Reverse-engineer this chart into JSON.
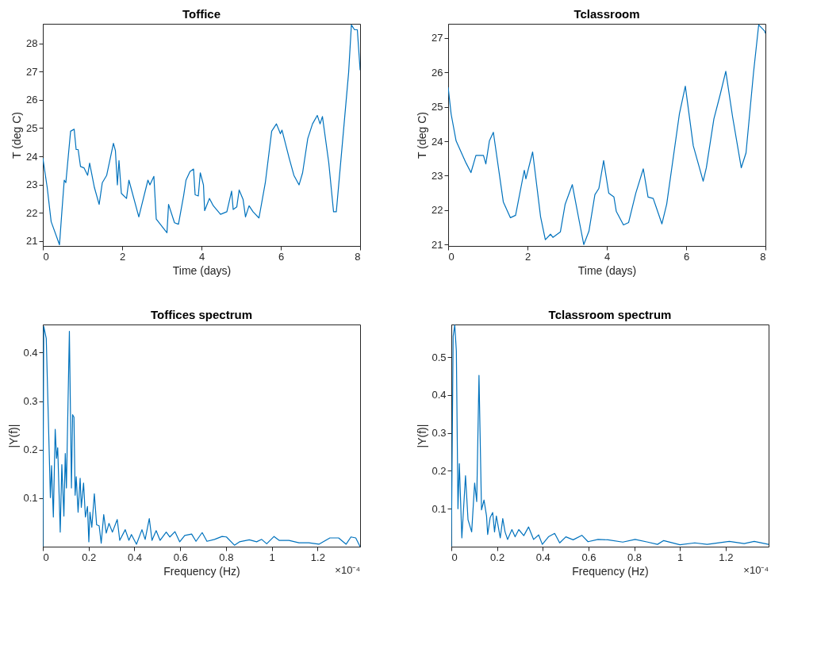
{
  "chart_data": [
    {
      "type": "line",
      "title": "Toffice",
      "xlabel": "Time (days)",
      "ylabel": "T (deg C)",
      "xlim": [
        0,
        8
      ],
      "ylim": [
        20.83,
        28.69
      ],
      "xticks": [
        0,
        2,
        4,
        6,
        8
      ],
      "yticks": [
        21,
        22,
        23,
        24,
        25,
        26,
        27,
        28
      ],
      "grid": false,
      "color": "#0072bd",
      "x": [
        0,
        0.11,
        0.21,
        0.42,
        0.48,
        0.54,
        0.58,
        0.7,
        0.79,
        0.84,
        0.89,
        0.95,
        1.04,
        1.13,
        1.18,
        1.3,
        1.42,
        1.5,
        1.61,
        1.78,
        1.83,
        1.88,
        1.92,
        1.98,
        2.11,
        2.17,
        2.42,
        2.65,
        2.7,
        2.8,
        2.86,
        3.13,
        3.17,
        3.32,
        3.42,
        3.55,
        3.61,
        3.71,
        3.8,
        3.84,
        3.92,
        3.97,
        4.05,
        4.08,
        4.2,
        4.3,
        4.48,
        4.64,
        4.76,
        4.8,
        4.89,
        4.95,
        5.05,
        5.11,
        5.2,
        5.3,
        5.45,
        5.61,
        5.77,
        5.89,
        5.99,
        6.03,
        6.21,
        6.33,
        6.46,
        6.55,
        6.68,
        6.8,
        6.92,
        6.99,
        7.05,
        7.21,
        7.33,
        7.4,
        7.58,
        7.71,
        7.78,
        7.86,
        7.93,
        8.0
      ],
      "values": [
        23.94,
        22.9,
        21.69,
        20.87,
        22.04,
        23.16,
        23.07,
        24.89,
        24.96,
        24.24,
        24.24,
        23.64,
        23.59,
        23.33,
        23.76,
        22.9,
        22.3,
        23.07,
        23.33,
        24.46,
        24.2,
        22.99,
        23.85,
        22.69,
        22.51,
        23.16,
        21.86,
        23.16,
        22.99,
        23.29,
        21.78,
        21.3,
        22.3,
        21.65,
        21.6,
        22.61,
        23.16,
        23.46,
        23.55,
        22.64,
        22.6,
        23.42,
        22.99,
        22.08,
        22.51,
        22.25,
        21.95,
        22.04,
        22.77,
        22.12,
        22.21,
        22.81,
        22.47,
        21.86,
        22.25,
        22.04,
        21.82,
        23.07,
        24.89,
        25.15,
        24.8,
        24.93,
        23.94,
        23.33,
        22.99,
        23.42,
        24.63,
        25.15,
        25.45,
        25.15,
        25.41,
        23.77,
        22.04,
        22.04,
        24.89,
        26.96,
        28.65,
        28.48,
        28.48,
        27.05
      ]
    },
    {
      "type": "line",
      "title": "Tclassroom",
      "xlabel": "Time (days)",
      "ylabel": "T (deg C)",
      "xlim": [
        0,
        8
      ],
      "ylim": [
        20.96,
        27.41
      ],
      "xticks": [
        0,
        2,
        4,
        6,
        8
      ],
      "yticks": [
        21,
        22,
        23,
        24,
        25,
        26,
        27
      ],
      "grid": false,
      "color": "#0072bd",
      "x": [
        0,
        0.075,
        0.2,
        0.45,
        0.575,
        0.7,
        0.89,
        0.95,
        1.04,
        1.14,
        1.39,
        1.57,
        1.7,
        1.92,
        1.96,
        2.13,
        2.33,
        2.45,
        2.58,
        2.64,
        2.83,
        2.95,
        3.13,
        3.33,
        3.42,
        3.55,
        3.7,
        3.8,
        3.92,
        4.05,
        4.18,
        4.24,
        4.42,
        4.55,
        4.73,
        4.92,
        5.04,
        5.17,
        5.39,
        5.51,
        5.83,
        5.98,
        6.18,
        6.43,
        6.51,
        6.7,
        6.86,
        7.0,
        7.17,
        7.39,
        7.51,
        7.7,
        7.83,
        7.98,
        8.0
      ],
      "values": [
        25.57,
        24.79,
        24.01,
        23.37,
        23.09,
        23.59,
        23.59,
        23.34,
        24.01,
        24.26,
        22.24,
        21.78,
        21.85,
        23.16,
        22.91,
        23.69,
        21.81,
        21.14,
        21.3,
        21.21,
        21.37,
        22.17,
        22.74,
        21.53,
        21.0,
        21.39,
        22.45,
        22.63,
        23.44,
        22.49,
        22.38,
        21.96,
        21.57,
        21.64,
        22.49,
        23.2,
        22.38,
        22.34,
        21.6,
        22.17,
        24.79,
        25.6,
        23.87,
        22.84,
        23.23,
        24.65,
        25.36,
        26.03,
        24.72,
        23.23,
        23.66,
        26.0,
        27.38,
        27.2,
        27.13
      ]
    },
    {
      "type": "line",
      "title": "Toffices spectrum",
      "xlabel": "Frequency (Hz)",
      "ylabel": "|Y(f)|",
      "xlim": [
        0,
        1.386
      ],
      "ylim": [
        0,
        0.458
      ],
      "xticks": [
        0,
        0.2,
        0.4,
        0.6,
        0.8,
        1,
        1.2
      ],
      "yticks": [
        0.1,
        0.2,
        0.3,
        0.4
      ],
      "grid": false,
      "color": "#0072bd",
      "annotations": [
        "×10⁻⁴"
      ],
      "x": [
        0,
        0.004,
        0.015,
        0.033,
        0.038,
        0.046,
        0.054,
        0.06,
        0.065,
        0.076,
        0.083,
        0.092,
        0.098,
        0.103,
        0.116,
        0.125,
        0.13,
        0.136,
        0.141,
        0.146,
        0.154,
        0.163,
        0.168,
        0.178,
        0.186,
        0.195,
        0.201,
        0.206,
        0.214,
        0.225,
        0.235,
        0.246,
        0.255,
        0.266,
        0.277,
        0.289,
        0.304,
        0.325,
        0.336,
        0.36,
        0.376,
        0.387,
        0.409,
        0.433,
        0.447,
        0.465,
        0.477,
        0.495,
        0.512,
        0.539,
        0.555,
        0.577,
        0.598,
        0.62,
        0.65,
        0.669,
        0.696,
        0.717,
        0.75,
        0.783,
        0.802,
        0.837,
        0.859,
        0.902,
        0.934,
        0.956,
        0.978,
        1.01,
        1.032,
        1.075,
        1.119,
        1.162,
        1.206,
        1.254,
        1.292,
        1.325,
        1.346,
        1.367,
        1.386
      ],
      "values": [
        0,
        0.454,
        0.429,
        0.101,
        0.167,
        0.061,
        0.242,
        0.182,
        0.204,
        0.03,
        0.169,
        0.063,
        0.192,
        0.121,
        0.444,
        0.121,
        0.272,
        0.267,
        0.106,
        0.144,
        0.071,
        0.141,
        0.081,
        0.131,
        0.061,
        0.083,
        0.01,
        0.071,
        0.04,
        0.109,
        0.045,
        0.043,
        0.007,
        0.066,
        0.028,
        0.048,
        0.03,
        0.056,
        0.013,
        0.035,
        0.013,
        0.025,
        0.005,
        0.035,
        0.015,
        0.058,
        0.013,
        0.033,
        0.013,
        0.03,
        0.02,
        0.031,
        0.01,
        0.023,
        0.026,
        0.011,
        0.029,
        0.011,
        0.015,
        0.021,
        0.02,
        0.003,
        0.01,
        0.014,
        0.01,
        0.015,
        0.006,
        0.021,
        0.013,
        0.013,
        0.008,
        0.008,
        0.005,
        0.018,
        0.018,
        0.005,
        0.02,
        0.018,
        0
      ]
    },
    {
      "type": "line",
      "title": "Tclassroom spectrum",
      "xlabel": "Frequency (Hz)",
      "ylabel": "|Y(f)|",
      "xlim": [
        0,
        1.388
      ],
      "ylim": [
        0,
        0.586
      ],
      "xticks": [
        0,
        0.2,
        0.4,
        0.6,
        0.8,
        1,
        1.2
      ],
      "yticks": [
        0.1,
        0.2,
        0.3,
        0.4,
        0.5
      ],
      "grid": false,
      "color": "#0072bd",
      "annotations": [
        "×10⁻⁴"
      ],
      "x": [
        0,
        0.008,
        0.015,
        0.022,
        0.029,
        0.035,
        0.046,
        0.062,
        0.073,
        0.089,
        0.102,
        0.111,
        0.121,
        0.132,
        0.143,
        0.154,
        0.159,
        0.17,
        0.181,
        0.189,
        0.197,
        0.214,
        0.225,
        0.235,
        0.246,
        0.265,
        0.279,
        0.295,
        0.317,
        0.338,
        0.36,
        0.382,
        0.398,
        0.425,
        0.452,
        0.474,
        0.501,
        0.533,
        0.571,
        0.598,
        0.642,
        0.685,
        0.75,
        0.804,
        0.859,
        0.902,
        0.929,
        1.0,
        1.065,
        1.119,
        1.216,
        1.281,
        1.325,
        1.388
      ],
      "values": [
        0,
        0.555,
        0.584,
        0.516,
        0.1,
        0.219,
        0.023,
        0.187,
        0.071,
        0.039,
        0.168,
        0.119,
        0.452,
        0.097,
        0.123,
        0.081,
        0.032,
        0.077,
        0.09,
        0.039,
        0.081,
        0.023,
        0.074,
        0.039,
        0.019,
        0.045,
        0.026,
        0.045,
        0.029,
        0.052,
        0.019,
        0.031,
        0.006,
        0.026,
        0.035,
        0.01,
        0.026,
        0.018,
        0.03,
        0.013,
        0.019,
        0.018,
        0.012,
        0.019,
        0.012,
        0.006,
        0.016,
        0.005,
        0.01,
        0.006,
        0.014,
        0.008,
        0.014,
        0.006
      ]
    }
  ]
}
